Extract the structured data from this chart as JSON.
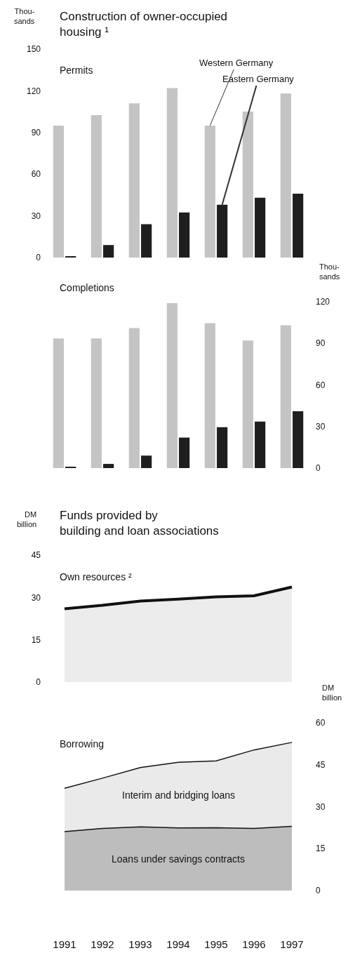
{
  "chart_data": [
    {
      "type": "bar",
      "title": "Construction of owner-occupied\nhousing ¹",
      "subtitle": "Permits",
      "ylabel": "Thou-\nsands",
      "categories": [
        "1991",
        "1992",
        "1993",
        "1994",
        "1995",
        "1996",
        "1997"
      ],
      "ylim": [
        0,
        150
      ],
      "yticks": [
        0,
        30,
        60,
        90,
        120,
        150
      ],
      "tick_labels": "y",
      "series": [
        {
          "name": "Western Germany",
          "color": "#c4c4c4",
          "values": [
            95,
            102.5,
            111,
            122,
            95,
            105,
            118
          ]
        },
        {
          "name": "Eastern Germany",
          "color": "#1e1e1e",
          "values": [
            1,
            9,
            24,
            32.5,
            38,
            43,
            46
          ]
        }
      ]
    },
    {
      "type": "bar",
      "subtitle": "Completions",
      "ylabel": "Thou-\nsands",
      "categories": [
        "1991",
        "1992",
        "1993",
        "1994",
        "1995",
        "1996",
        "1997"
      ],
      "ylim": [
        0,
        120
      ],
      "yticks": [
        0,
        30,
        60,
        90,
        120
      ],
      "tick_labels": "y",
      "series": [
        {
          "color": "#c4c4c4",
          "values": [
            93.5,
            93.5,
            101,
            119,
            104.5,
            92,
            103
          ]
        },
        {
          "color": "#1e1e1e",
          "values": [
            1,
            3,
            9,
            22,
            29.5,
            33.5,
            41
          ]
        }
      ]
    },
    {
      "type": "area",
      "title": "Funds provided by\nbuilding and loan associations",
      "subtitle": "Own resources ²",
      "ylabel": "DM\nbillion",
      "categories": [
        "1991",
        "1992",
        "1993",
        "1994",
        "1995",
        "1996",
        "1997"
      ],
      "ylim": [
        0,
        45
      ],
      "yticks": [
        0,
        15,
        30,
        45
      ],
      "tick_labels": "y",
      "series": [
        {
          "color": "#ececec",
          "values": [
            26,
            27.2,
            28.7,
            29.4,
            30.2,
            30.6,
            33.7
          ]
        }
      ]
    },
    {
      "type": "area",
      "stacked": true,
      "subtitle": "Borrowing",
      "ylabel": "DM\nbillion",
      "categories": [
        "1991",
        "1992",
        "1993",
        "1994",
        "1995",
        "1996",
        "1997"
      ],
      "ylim": [
        0,
        60
      ],
      "yticks": [
        0,
        15,
        30,
        45,
        60
      ],
      "series": [
        {
          "name": "Loans under savings contracts",
          "color": "#bdbdbd",
          "values": [
            21.1,
            22.2,
            22.8,
            22.4,
            22.5,
            22.2,
            23
          ]
        },
        {
          "name": "Interim and bridging loans",
          "color": "#eaeaea",
          "values": [
            15.5,
            18,
            21.2,
            23.5,
            23.9,
            28.1,
            30
          ]
        }
      ]
    }
  ]
}
